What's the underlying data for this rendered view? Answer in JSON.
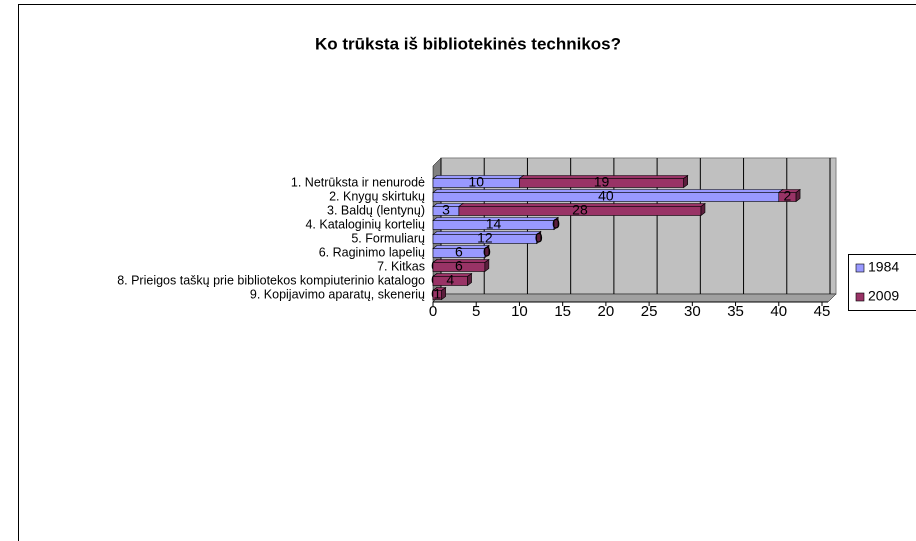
{
  "chart_data": {
    "type": "bar",
    "orientation": "horizontal",
    "stacked": true,
    "three_d": true,
    "title": "Ko trūksta iš bibliotekinės technikos?",
    "categories": [
      "1. Netrūksta ir nenurodė",
      "2. Knygų skirtukų",
      "3. Baldų (lentynų)",
      "4. Kataloginių kortelių",
      "5. Formuliarų",
      "6. Raginimo lapelių",
      "7. Kitkas",
      "8. Prieigos taškų prie bibliotekos kompiuterinio katalogo",
      "9. Kopijavimo aparatų, skenerių"
    ],
    "series": [
      {
        "name": "1984",
        "color": "#9999ff",
        "values": [
          10,
          40,
          3,
          14,
          12,
          6,
          0,
          0,
          0
        ]
      },
      {
        "name": "2009",
        "color": "#993366",
        "values": [
          19,
          2,
          28,
          0,
          0,
          0,
          6,
          4,
          1
        ]
      }
    ],
    "xlim": [
      0,
      45
    ],
    "xticks": [
      0,
      5,
      10,
      15,
      20,
      25,
      30,
      35,
      40,
      45
    ],
    "grid": true,
    "legend": "right"
  }
}
